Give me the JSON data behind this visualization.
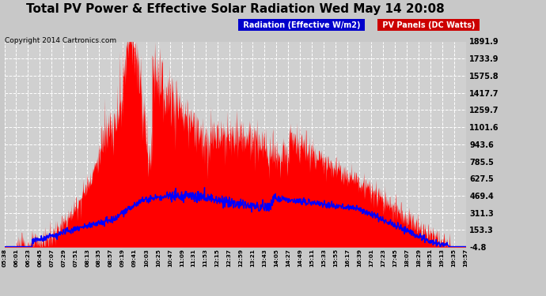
{
  "title": "Total PV Power & Effective Solar Radiation Wed May 14 20:08",
  "copyright": "Copyright 2014 Cartronics.com",
  "legend_radiation": "Radiation (Effective W/m2)",
  "legend_pv": "PV Panels (DC Watts)",
  "yticks": [
    -4.8,
    153.3,
    311.3,
    469.4,
    627.5,
    785.5,
    943.6,
    1101.6,
    1259.7,
    1417.7,
    1575.8,
    1733.9,
    1891.9
  ],
  "ymin": -4.8,
  "ymax": 1891.9,
  "background_color": "#c8c8c8",
  "plot_bg_color": "#d0d0d0",
  "grid_color": "#ffffff",
  "pv_color": "#ff0000",
  "radiation_color": "#0000ff",
  "title_fontsize": 12,
  "xtick_labels": [
    "05:38",
    "06:01",
    "06:23",
    "06:45",
    "07:07",
    "07:29",
    "07:51",
    "08:13",
    "08:35",
    "08:57",
    "09:19",
    "09:41",
    "10:03",
    "10:25",
    "10:47",
    "11:09",
    "11:31",
    "11:53",
    "12:15",
    "12:37",
    "12:59",
    "13:21",
    "13:43",
    "14:05",
    "14:27",
    "14:49",
    "15:11",
    "15:33",
    "15:55",
    "16:17",
    "16:39",
    "17:01",
    "17:23",
    "17:45",
    "18:07",
    "18:29",
    "18:51",
    "19:13",
    "19:35",
    "19:57"
  ]
}
